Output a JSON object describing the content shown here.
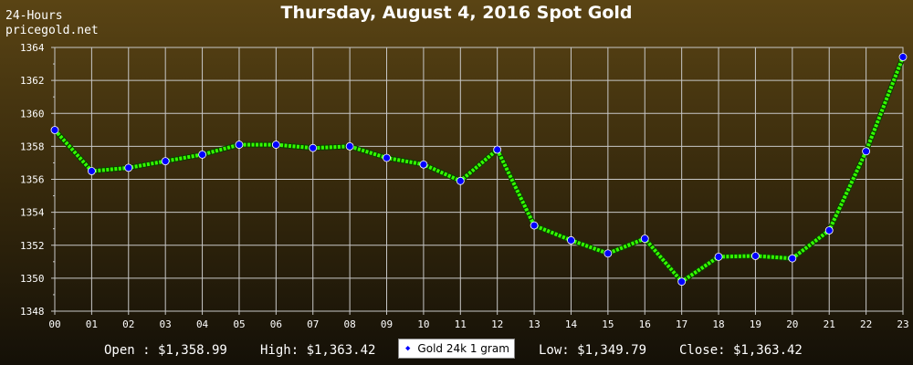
{
  "header": {
    "range_label": "24-Hours",
    "site_label": "pricegold.net",
    "title": "Thursday, August 4, 2016 Spot Gold"
  },
  "stats": {
    "open": "Open : $1,358.99",
    "high": "High: $1,363.42",
    "low": "Low: $1,349.79",
    "close": "Close: $1,363.42"
  },
  "legend": {
    "label": "Gold 24k 1 gram",
    "marker_icon": "diamond-icon"
  },
  "colors": {
    "line": "#33ff00",
    "marker": "#0000ff",
    "grid": "#c8c8c8",
    "axis_text": "#ffffff"
  },
  "chart_data": {
    "type": "line",
    "x": [
      "00",
      "01",
      "02",
      "03",
      "04",
      "05",
      "06",
      "07",
      "08",
      "09",
      "10",
      "11",
      "12",
      "13",
      "14",
      "15",
      "16",
      "17",
      "18",
      "19",
      "20",
      "21",
      "22",
      "23"
    ],
    "series": [
      {
        "name": "Gold 24k 1 gram",
        "values": [
          1358.99,
          1356.5,
          1356.7,
          1357.1,
          1357.5,
          1358.1,
          1358.1,
          1357.9,
          1358.0,
          1357.3,
          1356.9,
          1355.9,
          1357.8,
          1353.2,
          1352.3,
          1351.5,
          1352.4,
          1349.79,
          1351.3,
          1351.35,
          1351.2,
          1352.9,
          1357.7,
          1363.42
        ]
      }
    ],
    "yticks": [
      1348,
      1350,
      1352,
      1354,
      1356,
      1358,
      1360,
      1362,
      1364
    ],
    "ylim": [
      1348,
      1364
    ],
    "grid": true
  }
}
